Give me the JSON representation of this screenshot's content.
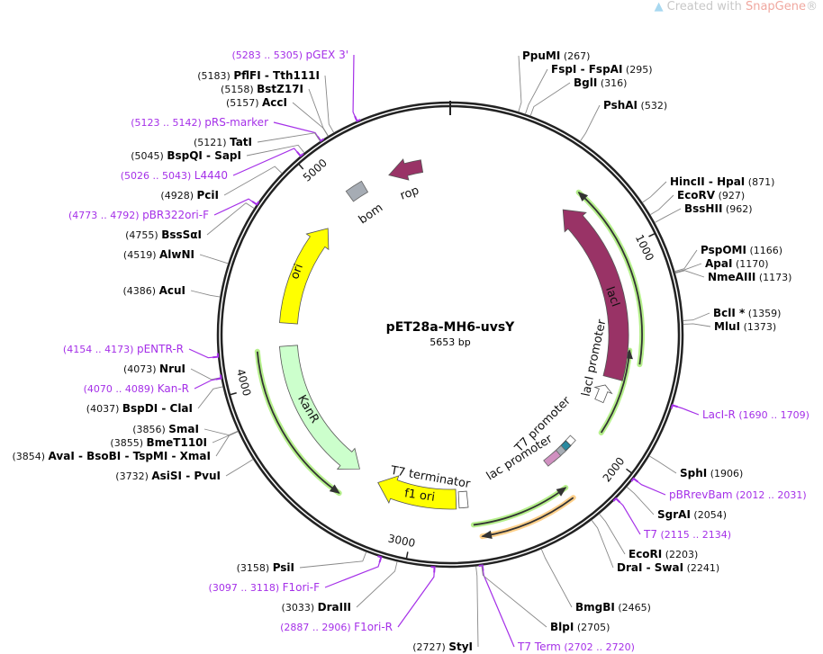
{
  "watermark": {
    "prefix": "Created with ",
    "brand": "SnapGene",
    "suffix": "®"
  },
  "plasmid": {
    "name": "pET28a-MH6-uvsY",
    "size_label": "5653 bp",
    "length_bp": 5653
  },
  "ticks": [
    "1000",
    "2000",
    "3000",
    "4000",
    "5000"
  ],
  "colors": {
    "primer": "#a530e8",
    "ori": "#ffff00",
    "kanR": "#ccffcc",
    "lacI": "#993366",
    "orf_green": "#b6f08c",
    "orf_orange": "#ffd08a",
    "bom": "#a6acb4",
    "backbone": "#222222"
  },
  "features": [
    {
      "name": "rop",
      "start": 5323,
      "end": 5503,
      "direction": "reverse",
      "color": "#993366"
    },
    {
      "name": "bom",
      "start": 5088,
      "end": 5182,
      "direction": "none",
      "color": "#a6acb4"
    },
    {
      "name": "ori",
      "start": 4303,
      "end": 4884,
      "direction": "forward",
      "color": "#ffff00"
    },
    {
      "name": "KanR",
      "start": 3360,
      "end": 4177,
      "direction": "reverse",
      "color": "#ccffcc"
    },
    {
      "name": "f1 ori",
      "start": 2795,
      "end": 3235,
      "direction": "forward",
      "color": "#ffff00"
    },
    {
      "name": "T7 terminator",
      "start": 2733,
      "end": 2780,
      "direction": "none",
      "color": "#ffffff"
    },
    {
      "name": "lacI",
      "start": 660,
      "end": 1649,
      "direction": "reverse",
      "color": "#993366"
    },
    {
      "name": "lacI promoter",
      "start": 1696,
      "end": 1790,
      "direction": "reverse",
      "color": "#ffffff"
    },
    {
      "name": "T7 promoter",
      "start": 2080,
      "end": 2110,
      "direction": "forward",
      "color": "#2a8aa0"
    },
    {
      "name": "lac promoter",
      "start": 2150,
      "end": 2190,
      "direction": "forward",
      "color": "#a6acb4"
    }
  ],
  "orfs": [
    {
      "start": 660,
      "end": 1554,
      "direction": "reverse",
      "color": "#b6f08c"
    },
    {
      "start": 1492,
      "end": 1932,
      "direction": "reverse",
      "color": "#b6f08c"
    },
    {
      "start": 2245,
      "end": 2717,
      "direction": "reverse",
      "color": "#b6f08c"
    },
    {
      "start": 2245,
      "end": 2685,
      "direction": "forward",
      "color": "#ffd08a"
    },
    {
      "start": 3376,
      "end": 4161,
      "direction": "reverse",
      "color": "#b6f08c"
    }
  ],
  "sites": [
    {
      "type": "primer",
      "name": "pGEX 3'",
      "pos": "(5283 .. 5305)"
    },
    {
      "type": "enzyme",
      "name": "PflFI  - Tth111I",
      "pos": "(5183)"
    },
    {
      "type": "enzyme",
      "name": "BstZ17I",
      "pos": "(5158)"
    },
    {
      "type": "enzyme",
      "name": "AccI",
      "pos": "(5157)"
    },
    {
      "type": "primer",
      "name": "pRS-marker",
      "pos": "(5123 .. 5142)"
    },
    {
      "type": "enzyme",
      "name": "TatI",
      "pos": "(5121)"
    },
    {
      "type": "enzyme",
      "name": "BspQI  - SapI",
      "pos": "(5045)"
    },
    {
      "type": "primer",
      "name": "L4440",
      "pos": "(5026 .. 5043)"
    },
    {
      "type": "enzyme",
      "name": "PciI",
      "pos": "(4928)"
    },
    {
      "type": "primer",
      "name": "pBR322ori-F",
      "pos": "(4773 .. 4792)"
    },
    {
      "type": "enzyme",
      "name": "BssSαI",
      "pos": "(4755)"
    },
    {
      "type": "enzyme",
      "name": "AlwNI",
      "pos": "(4519)"
    },
    {
      "type": "enzyme",
      "name": "AcuI",
      "pos": "(4386)"
    },
    {
      "type": "primer",
      "name": "pENTR-R",
      "pos": "(4154 .. 4173)"
    },
    {
      "type": "enzyme",
      "name": "NruI",
      "pos": "(4073)"
    },
    {
      "type": "primer",
      "name": "Kan-R",
      "pos": "(4070 .. 4089)"
    },
    {
      "type": "enzyme",
      "name": "BspDI  - ClaI",
      "pos": "(4037)"
    },
    {
      "type": "enzyme",
      "name": "SmaI",
      "pos": "(3856)"
    },
    {
      "type": "enzyme",
      "name": "BmeT110I",
      "pos": "(3855)"
    },
    {
      "type": "enzyme",
      "name": "AvaI  - BsoBI  - TspMI  - XmaI",
      "pos": "(3854)"
    },
    {
      "type": "enzyme",
      "name": "AsiSI  - PvuI",
      "pos": "(3732)"
    },
    {
      "type": "enzyme",
      "name": "PsiI",
      "pos": "(3158)"
    },
    {
      "type": "primer",
      "name": "F1ori-F",
      "pos": "(3097 .. 3118)"
    },
    {
      "type": "enzyme",
      "name": "DraIII",
      "pos": "(3033)"
    },
    {
      "type": "primer",
      "name": "F1ori-R",
      "pos": "(2887 .. 2906)"
    },
    {
      "type": "enzyme",
      "name": "StyI",
      "pos": "(2727)"
    },
    {
      "type": "primer",
      "name": "T7 Term",
      "pos": "(2702 .. 2720)"
    },
    {
      "type": "enzyme",
      "name": "BlpI",
      "pos": "(2705)"
    },
    {
      "type": "enzyme",
      "name": "BmgBI",
      "pos": "(2465)"
    },
    {
      "type": "enzyme",
      "name": "DraI  - SwaI",
      "pos": "(2241)"
    },
    {
      "type": "enzyme",
      "name": "EcoRI",
      "pos": "(2203)"
    },
    {
      "type": "primer",
      "name": "T7",
      "pos": "(2115 .. 2134)"
    },
    {
      "type": "enzyme",
      "name": "SgrAI",
      "pos": "(2054)"
    },
    {
      "type": "primer",
      "name": "pBRrevBam",
      "pos": "(2012 .. 2031)"
    },
    {
      "type": "enzyme",
      "name": "SphI",
      "pos": "(1906)"
    },
    {
      "type": "primer",
      "name": "LacI-R",
      "pos": "(1690 .. 1709)"
    },
    {
      "type": "enzyme",
      "name": "BclI *",
      "pos": "(1359)",
      "muted": true
    },
    {
      "type": "enzyme",
      "name": "MluI",
      "pos": "(1373)"
    },
    {
      "type": "enzyme",
      "name": "PspOMI",
      "pos": "(1166)"
    },
    {
      "type": "enzyme",
      "name": "ApaI",
      "pos": "(1170)"
    },
    {
      "type": "enzyme",
      "name": "NmeAIII",
      "pos": "(1173)"
    },
    {
      "type": "enzyme",
      "name": "HincII  - HpaI",
      "pos": "(871)"
    },
    {
      "type": "enzyme",
      "name": "EcoRV",
      "pos": "(927)"
    },
    {
      "type": "enzyme",
      "name": "BssHII",
      "pos": "(962)"
    },
    {
      "type": "enzyme",
      "name": "PshAI",
      "pos": "(532)"
    },
    {
      "type": "enzyme",
      "name": "PpuMI",
      "pos": "(267)"
    },
    {
      "type": "enzyme",
      "name": "FspI  - FspAI",
      "pos": "(295)"
    },
    {
      "type": "enzyme",
      "name": "BglI",
      "pos": "(316)"
    }
  ]
}
